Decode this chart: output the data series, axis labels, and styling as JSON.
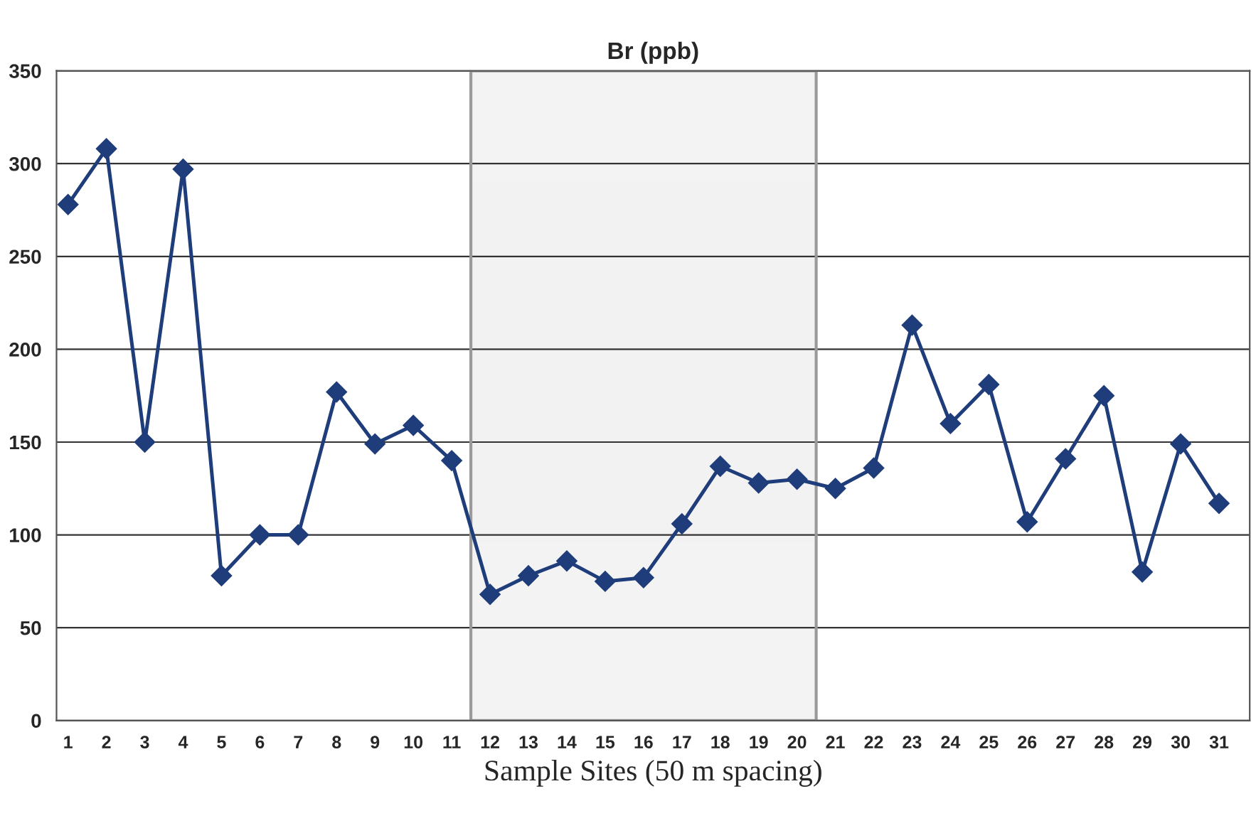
{
  "chart_data": {
    "type": "line",
    "title": "Br (ppb)",
    "xlabel": "Sample Sites (50 m spacing)",
    "x": [
      1,
      2,
      3,
      4,
      5,
      6,
      7,
      8,
      9,
      10,
      11,
      12,
      13,
      14,
      15,
      16,
      17,
      18,
      19,
      20,
      21,
      22,
      23,
      24,
      25,
      26,
      27,
      28,
      29,
      30,
      31
    ],
    "series": [
      {
        "color": "#1f3d7a",
        "values": [
          278,
          308,
          150,
          297,
          78,
          100,
          100,
          177,
          149,
          159,
          140,
          68,
          78,
          86,
          75,
          77,
          106,
          137,
          128,
          130,
          125,
          136,
          213,
          160,
          181,
          107,
          141,
          175,
          80,
          149,
          117
        ]
      }
    ],
    "xlim": [
      0.7,
      31.8
    ],
    "xticks": [
      1,
      2,
      3,
      4,
      5,
      6,
      7,
      8,
      9,
      10,
      11,
      12,
      13,
      14,
      15,
      16,
      17,
      18,
      19,
      20,
      21,
      22,
      23,
      24,
      25,
      26,
      27,
      28,
      29,
      30,
      31
    ],
    "ylim": [
      0,
      350
    ],
    "yticks": [
      0,
      50,
      100,
      150,
      200,
      250,
      300,
      350
    ],
    "bands": [
      {
        "axis": "x",
        "from": 11.5,
        "to": 20.5,
        "color": "#9a9a9a"
      }
    ],
    "grid": "y",
    "marker": "diamond",
    "line_style": "solid"
  }
}
